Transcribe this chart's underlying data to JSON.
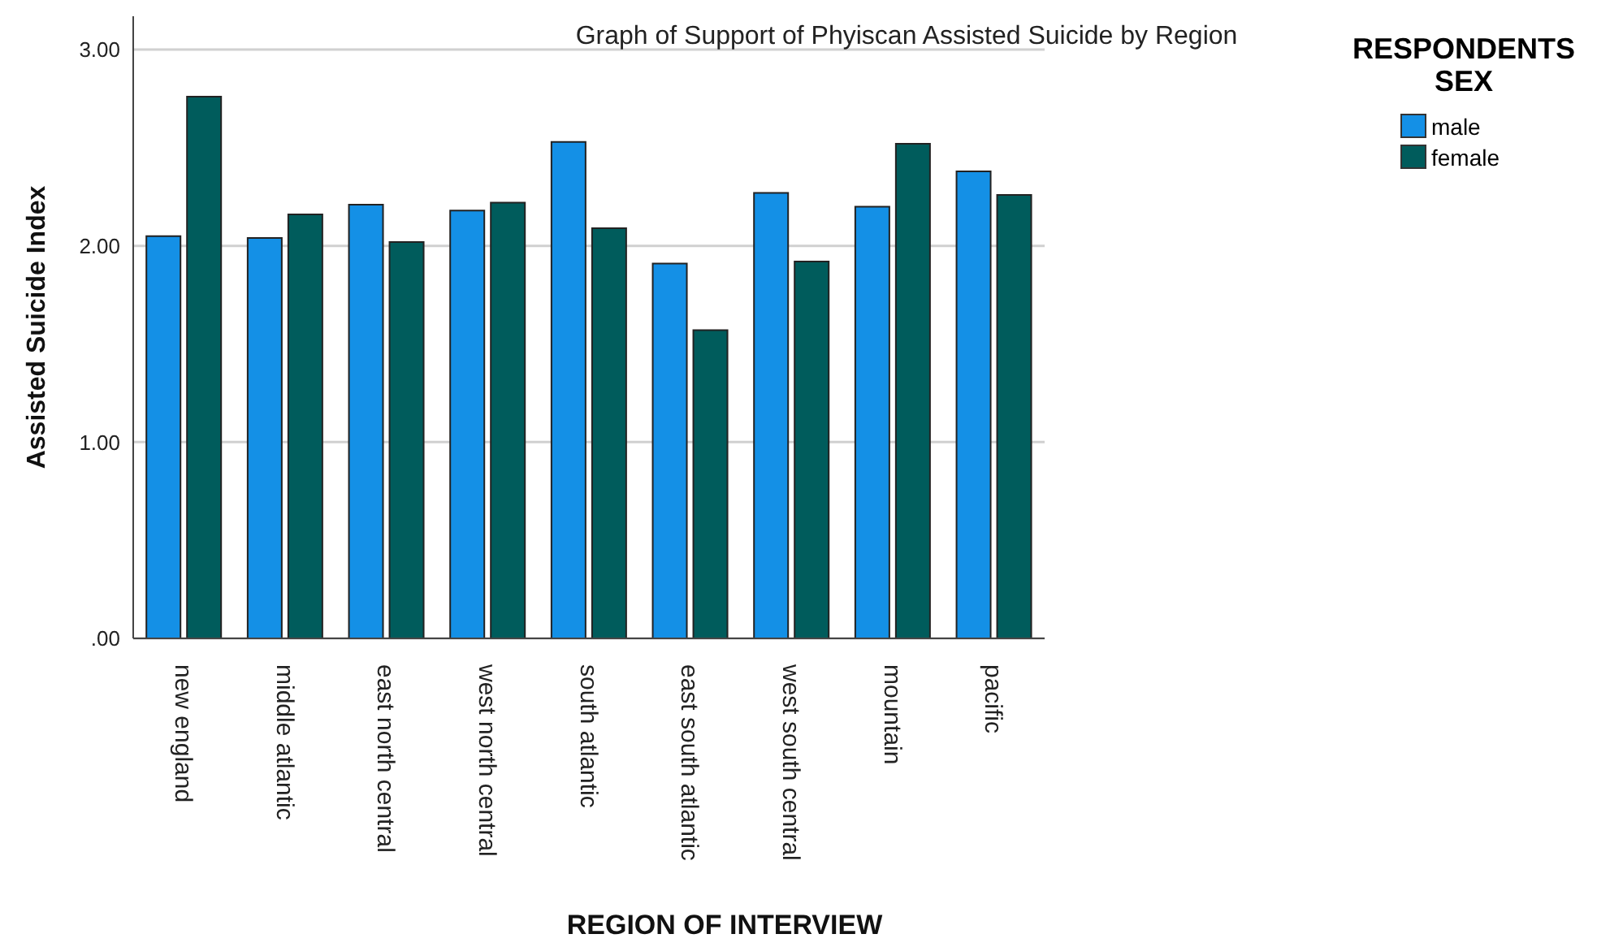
{
  "chart_data": {
    "type": "bar",
    "title": "Graph of Support of Phyiscan Assisted Suicide by Region",
    "xlabel": "REGION OF INTERVIEW",
    "ylabel": "Assisted Suicide Index",
    "legend_title": "RESPONDENTS SEX",
    "categories": [
      "new england",
      "middle atlantic",
      "east north central",
      "west north central",
      "south atlantic",
      "east south atlantic",
      "west south central",
      "mountain",
      "pacific"
    ],
    "series": [
      {
        "name": "male",
        "color": "#1490e6",
        "values": [
          2.05,
          2.04,
          2.21,
          2.18,
          2.53,
          1.91,
          2.27,
          2.2,
          2.38
        ]
      },
      {
        "name": "female",
        "color": "#005c5c",
        "values": [
          2.76,
          2.16,
          2.02,
          2.22,
          2.09,
          1.57,
          1.92,
          2.52,
          2.26
        ]
      }
    ],
    "ylim": [
      0,
      3.17
    ],
    "yticks": [
      {
        "value": 0,
        "label": ".00"
      },
      {
        "value": 1,
        "label": "1.00"
      },
      {
        "value": 2,
        "label": "2.00"
      },
      {
        "value": 3,
        "label": "3.00"
      }
    ],
    "grid": "y",
    "legend": "top right"
  }
}
